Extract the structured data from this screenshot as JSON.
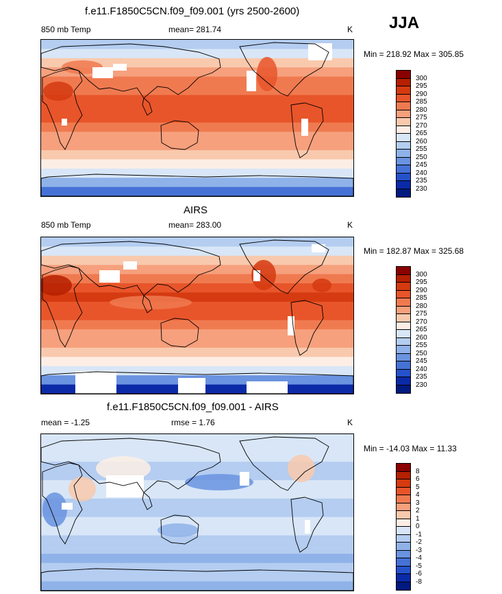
{
  "season": "JJA",
  "chart_data": [
    {
      "type": "heatmap",
      "title": "f.e11.F1850C5CN.f09_f09.001 (yrs 2500-2600)",
      "left_label": "850 mb Temp",
      "stat_label": "mean= 281.74",
      "mean": 281.74,
      "units": "K",
      "range_text": "Min = 218.92 Max = 305.85",
      "min": 218.92,
      "max": 305.85,
      "levels": [
        "300",
        "295",
        "290",
        "285",
        "280",
        "275",
        "270",
        "265",
        "260",
        "255",
        "250",
        "245",
        "240",
        "235",
        "230"
      ],
      "colors": [
        "#8b0000",
        "#b52000",
        "#d53a10",
        "#e8552a",
        "#f07a50",
        "#f6a07d",
        "#f9c9ad",
        "#fdeee5",
        "#d8e6f7",
        "#b4cdf0",
        "#8fb2e9",
        "#6a93e0",
        "#4672d6",
        "#2552cc",
        "#0b2aa8",
        "#001a80"
      ]
    },
    {
      "type": "heatmap",
      "title": "AIRS",
      "left_label": "850 mb Temp",
      "stat_label": "mean= 283.00",
      "mean": 283.0,
      "units": "K",
      "range_text": "Min = 182.87 Max = 325.68",
      "min": 182.87,
      "max": 325.68,
      "levels": [
        "300",
        "295",
        "290",
        "285",
        "280",
        "275",
        "270",
        "265",
        "260",
        "255",
        "250",
        "245",
        "240",
        "235",
        "230"
      ],
      "colors": [
        "#8b0000",
        "#b52000",
        "#d53a10",
        "#e8552a",
        "#f07a50",
        "#f6a07d",
        "#f9c9ad",
        "#fdeee5",
        "#d8e6f7",
        "#b4cdf0",
        "#8fb2e9",
        "#6a93e0",
        "#4672d6",
        "#2552cc",
        "#0b2aa8",
        "#001a80"
      ]
    },
    {
      "type": "heatmap",
      "title": "f.e11.F1850C5CN.f09_f09.001 - AIRS",
      "left_label": "mean =  -1.25",
      "stat_label": "rmse =   1.76",
      "mean": -1.25,
      "rmse": 1.76,
      "units": "K",
      "range_text": "Min = -14.03 Max =  11.33",
      "min": -14.03,
      "max": 11.33,
      "levels": [
        "8",
        "6",
        "5",
        "4",
        "3",
        "2",
        "1",
        "0",
        "-1",
        "-2",
        "-3",
        "-4",
        "-5",
        "-6",
        "-8"
      ],
      "colors": [
        "#8b0000",
        "#b52000",
        "#d53a10",
        "#e8552a",
        "#f07a50",
        "#f6a07d",
        "#f9c9ad",
        "#fdeee5",
        "#d8e6f7",
        "#b4cdf0",
        "#8fb2e9",
        "#6a93e0",
        "#4672d6",
        "#2552cc",
        "#0b2aa8",
        "#001a80"
      ]
    }
  ]
}
